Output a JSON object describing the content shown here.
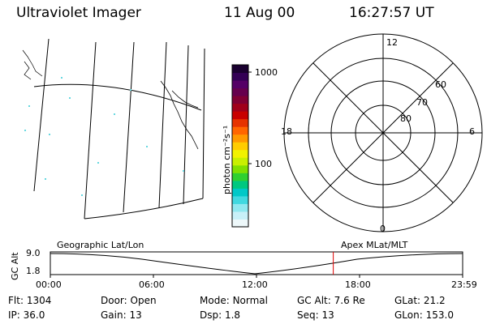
{
  "header": {
    "instrument": "Ultraviolet Imager",
    "date": "11 Aug 00",
    "time": "16:27:57 UT"
  },
  "colorbar": {
    "unit_label": "photon cm⁻²s⁻¹",
    "ticks": [
      "1000",
      "100"
    ],
    "colors": [
      "#1a0030",
      "#330055",
      "#550066",
      "#66004d",
      "#800033",
      "#a0001a",
      "#c80000",
      "#e63300",
      "#ff6600",
      "#ff9900",
      "#ffcc00",
      "#f2f200",
      "#c8f000",
      "#80e000",
      "#30d030",
      "#00c880",
      "#00c8c8",
      "#40d8e0",
      "#90e8f0",
      "#c8f0f8",
      "#eef8fa"
    ]
  },
  "polar": {
    "mlt_labels": {
      "top": "12",
      "left": "18",
      "right": "6",
      "bottom": "0"
    },
    "lat_labels": [
      "60",
      "70",
      "80"
    ]
  },
  "timeline": {
    "left_title": "Geographic Lat/Lon",
    "right_title": "Apex MLat/MLT",
    "axis_title": "GC Alt",
    "y_max": "9.0",
    "y_min": "1.8",
    "x_ticks": [
      "00:00",
      "06:00",
      "12:00",
      "18:00",
      "23:59"
    ],
    "current_marker_hours": 16.47,
    "marker_color": "#dd0000"
  },
  "footer": {
    "row1": [
      {
        "label": "Flt:",
        "value": "1304"
      },
      {
        "label": "Door:",
        "value": "Open"
      },
      {
        "label": "Mode:",
        "value": "Normal"
      },
      {
        "label": "GC Alt:",
        "value": "7.6 Re"
      },
      {
        "label": "GLat:",
        "value": "21.2"
      }
    ],
    "row2": [
      {
        "label": "IP:",
        "value": "36.0"
      },
      {
        "label": "Gain:",
        "value": "13"
      },
      {
        "label": "Dsp:",
        "value": "1.8"
      },
      {
        "label": "Seq:",
        "value": "13"
      },
      {
        "label": "GLon:",
        "value": "153.0"
      }
    ]
  }
}
